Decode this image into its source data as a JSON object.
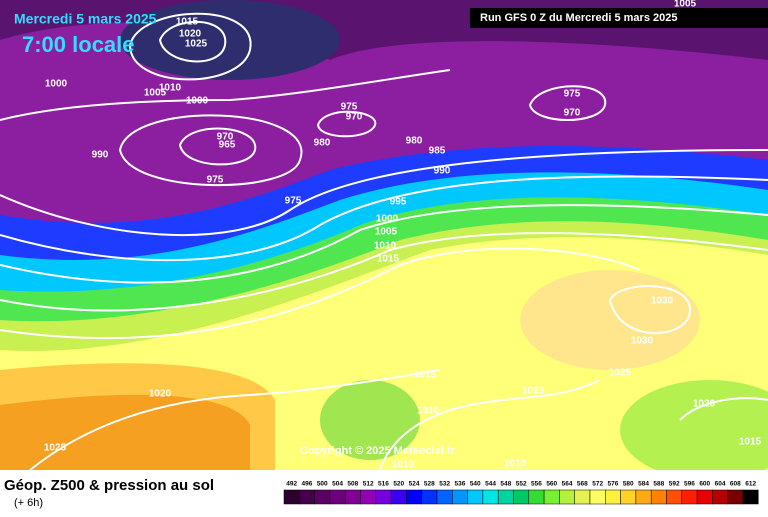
{
  "header": {
    "date": "Mercredi 5 mars 2025",
    "time": "7:00 locale",
    "run": "Run GFS 0 Z du Mercredi 5 mars 2025"
  },
  "copyright": "Copyright © 2025 Meteociel.fr",
  "footer": {
    "title": "Géop. Z500 & pression au sol",
    "step": "(+ 6h)"
  },
  "isobar_labels": [
    1015,
    1020,
    1025,
    1000,
    1005,
    1010,
    1000,
    975,
    970,
    970,
    965,
    990,
    980,
    980,
    985,
    990,
    975,
    975,
    995,
    1000,
    1005,
    1010,
    1015,
    975,
    970,
    1005,
    1030,
    1030,
    1025,
    1015,
    1010,
    1020,
    1020,
    1020,
    1025,
    1015,
    1010,
    1010
  ],
  "legend": {
    "values": [
      492,
      496,
      500,
      504,
      508,
      512,
      516,
      520,
      524,
      528,
      532,
      536,
      540,
      544,
      548,
      552,
      556,
      560,
      564,
      568,
      572,
      576,
      580,
      584,
      588,
      592,
      596,
      600,
      604,
      608,
      612
    ],
    "colors": [
      "#2d0030",
      "#46004b",
      "#5a0064",
      "#6e007d",
      "#820096",
      "#9600b4",
      "#7800dc",
      "#3c00f0",
      "#0000ff",
      "#0032ff",
      "#0064ff",
      "#0096ff",
      "#00c8ff",
      "#00e6e6",
      "#00d2a0",
      "#00c864",
      "#32dc32",
      "#78f032",
      "#b4f03c",
      "#e6f050",
      "#ffff64",
      "#fff03c",
      "#ffd228",
      "#ffaa14",
      "#ff8200",
      "#ff5000",
      "#ff1e00",
      "#e60000",
      "#b40000",
      "#780000",
      "#000000"
    ]
  }
}
